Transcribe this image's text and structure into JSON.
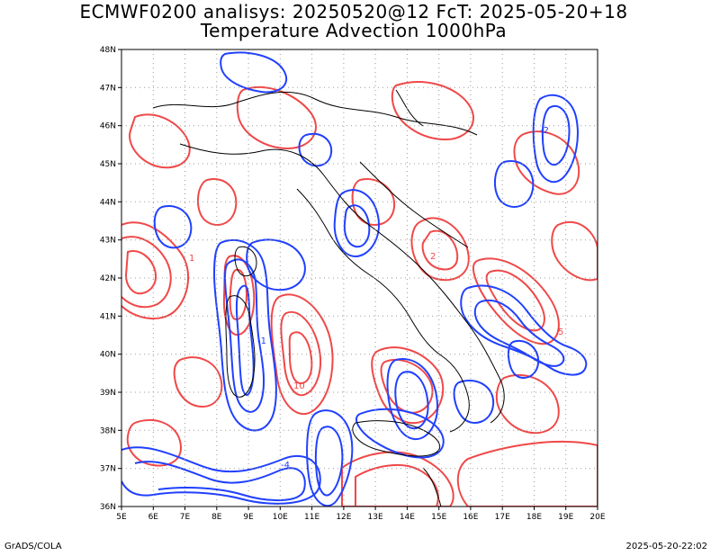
{
  "header": {
    "title_line1": "ECMWF0200 analisys: 20250520@12 FcT: 2025-05-20+18",
    "title_line2": "Temperature Advection 1000hPa"
  },
  "footer": {
    "left": "GrADS/COLA",
    "right": "2025-05-20-22:02"
  },
  "map": {
    "lon_range": [
      5,
      20
    ],
    "lat_range": [
      36,
      48
    ],
    "lon_labels": [
      "5E",
      "6E",
      "7E",
      "8E",
      "9E",
      "10E",
      "11E",
      "12E",
      "13E",
      "14E",
      "15E",
      "16E",
      "17E",
      "18E",
      "19E",
      "20E"
    ],
    "lat_labels": [
      "36N",
      "37N",
      "38N",
      "39N",
      "40N",
      "41N",
      "42N",
      "43N",
      "44N",
      "45N",
      "46N",
      "47N",
      "48N"
    ],
    "colors": {
      "positive": "#f04848",
      "negative": "#2040ff",
      "borders": "#000000",
      "grid": "#9a9a9a"
    },
    "grid": "dotted",
    "contour_labels": [
      "-1",
      "1",
      "2",
      "10",
      "-4",
      "-2",
      "5"
    ]
  }
}
